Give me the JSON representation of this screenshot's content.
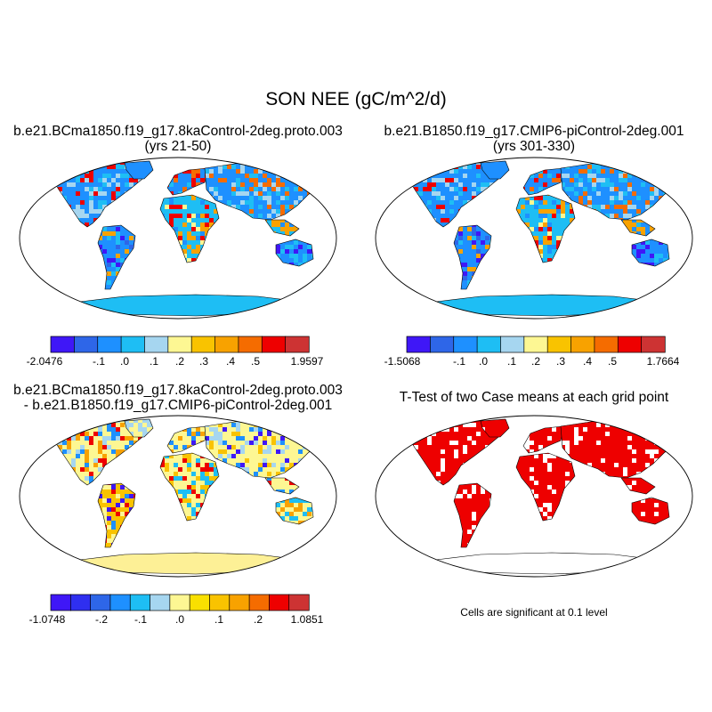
{
  "main_title": "SON NEE (gC/m^2/d)",
  "panels": [
    {
      "title_line1": "b.e21.BCma1850.f19_g17.8kaControl-2deg.proto.003",
      "title_line2": "(yrs 21-50)",
      "colorbar": {
        "colors": [
          "#3f17f7",
          "#2e66e8",
          "#1e90ff",
          "#1ebef4",
          "#a6d6f0",
          "#fdf793",
          "#f9c300",
          "#f8a200",
          "#f56c00",
          "#ee0000",
          "#cd3333"
        ],
        "end_labels": [
          "-2.0476",
          "1.9597"
        ],
        "tick_labels": [
          "-.1",
          ".0",
          ".1",
          ".2",
          ".3",
          ".4",
          ".5"
        ]
      }
    },
    {
      "title_line1": "b.e21.B1850.f19_g17.CMIP6-piControl-2deg.001",
      "title_line2": "(yrs 301-330)",
      "colorbar": {
        "colors": [
          "#3f17f7",
          "#2e66e8",
          "#1e90ff",
          "#1ebef4",
          "#a6d6f0",
          "#fdf793",
          "#f9c300",
          "#f8a200",
          "#f56c00",
          "#ee0000",
          "#cd3333"
        ],
        "end_labels": [
          "-1.5068",
          "1.7664"
        ],
        "tick_labels": [
          "-.1",
          ".0",
          ".1",
          ".2",
          ".3",
          ".4",
          ".5"
        ]
      }
    },
    {
      "title_line1": "b.e21.BCma1850.f19_g17.8kaControl-2deg.proto.003",
      "title_line2": "- b.e21.B1850.f19_g17.CMIP6-piControl-2deg.001",
      "colorbar": {
        "colors": [
          "#3f17f7",
          "#2f2ff0",
          "#2e66e8",
          "#1e90ff",
          "#1ebef4",
          "#a6d6f0",
          "#fdf793",
          "#f9e000",
          "#f9c300",
          "#f8a200",
          "#f56c00",
          "#ee0000",
          "#cd3333"
        ],
        "end_labels": [
          "-1.0748",
          "1.0851"
        ],
        "tick_labels": [
          "-.2",
          "-.1",
          ".0",
          ".1",
          ".2"
        ]
      }
    },
    {
      "title_line1": "T-Test of two Case means at each grid point",
      "note": "Cells are significant at 0.1 level"
    }
  ],
  "palette": {
    "ocean": "#ffffff",
    "antarctica_panel3": "#fdf096",
    "significant": "#ee0000"
  }
}
